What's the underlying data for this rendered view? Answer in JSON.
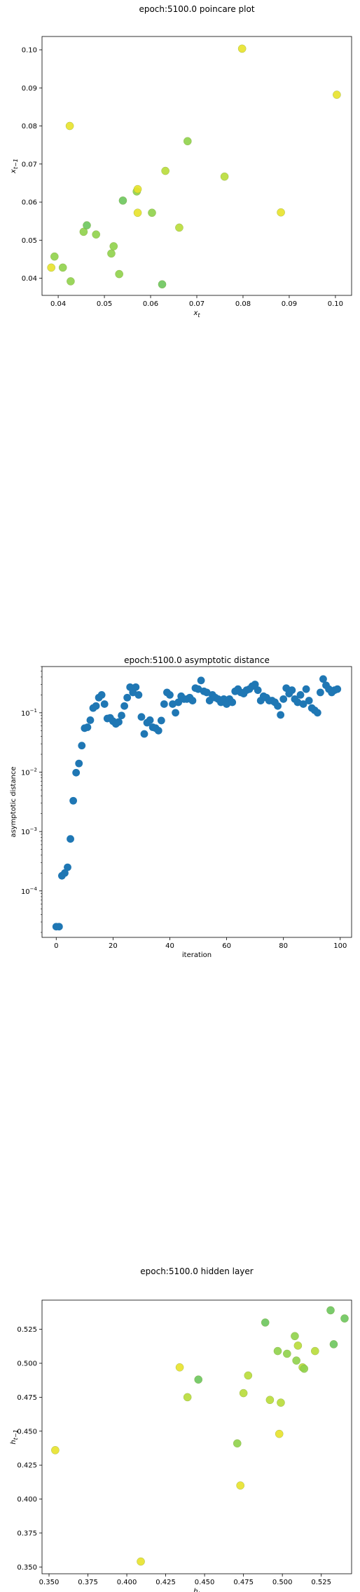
{
  "chart_data": [
    {
      "type": "scatter",
      "title": "epoch:5100.0 poincare plot",
      "xlabel": "x_t",
      "ylabel": "x_{t-1}",
      "xlim": [
        0.0365,
        0.1035
      ],
      "ylim": [
        0.0355,
        0.1035
      ],
      "xticks": [
        0.04,
        0.05,
        0.06,
        0.07,
        0.08,
        0.09,
        0.1
      ],
      "yticks": [
        0.04,
        0.05,
        0.06,
        0.07,
        0.08,
        0.09,
        0.1
      ],
      "tick_format": 2,
      "points": [
        {
          "x": 0.0385,
          "y": 0.0428,
          "color": "#e8e22a"
        },
        {
          "x": 0.0392,
          "y": 0.0457,
          "color": "#8fd14a"
        },
        {
          "x": 0.041,
          "y": 0.0428,
          "color": "#8fd14a"
        },
        {
          "x": 0.0425,
          "y": 0.08,
          "color": "#e8e22a"
        },
        {
          "x": 0.0427,
          "y": 0.0392,
          "color": "#8fd14a"
        },
        {
          "x": 0.0455,
          "y": 0.0522,
          "color": "#8fd14a"
        },
        {
          "x": 0.0462,
          "y": 0.0539,
          "color": "#6cc55c"
        },
        {
          "x": 0.0482,
          "y": 0.0515,
          "color": "#8fd14a"
        },
        {
          "x": 0.0515,
          "y": 0.0465,
          "color": "#8fd14a"
        },
        {
          "x": 0.052,
          "y": 0.0484,
          "color": "#8fd14a"
        },
        {
          "x": 0.0532,
          "y": 0.0411,
          "color": "#8fd14a"
        },
        {
          "x": 0.054,
          "y": 0.0604,
          "color": "#6cc55c"
        },
        {
          "x": 0.057,
          "y": 0.0628,
          "color": "#8fd14a"
        },
        {
          "x": 0.0572,
          "y": 0.0634,
          "color": "#e8e22a"
        },
        {
          "x": 0.0572,
          "y": 0.0572,
          "color": "#e8e22a"
        },
        {
          "x": 0.0603,
          "y": 0.0572,
          "color": "#8fd14a"
        },
        {
          "x": 0.0625,
          "y": 0.0384,
          "color": "#6cc55c"
        },
        {
          "x": 0.0632,
          "y": 0.0682,
          "color": "#b8dc38"
        },
        {
          "x": 0.0662,
          "y": 0.0533,
          "color": "#b8dc38"
        },
        {
          "x": 0.068,
          "y": 0.076,
          "color": "#8fd14a"
        },
        {
          "x": 0.076,
          "y": 0.0667,
          "color": "#b8dc38"
        },
        {
          "x": 0.0798,
          "y": 0.1003,
          "color": "#e8e22a"
        },
        {
          "x": 0.0882,
          "y": 0.0573,
          "color": "#e8e22a"
        },
        {
          "x": 0.1003,
          "y": 0.0882,
          "color": "#e8e22a"
        }
      ]
    },
    {
      "type": "scatter",
      "title": "epoch:5100.0 asymptotic distance",
      "xlabel": "iteration",
      "ylabel": "asymptotic distance",
      "yscale": "log",
      "xlim": [
        -5,
        104
      ],
      "ylim": [
        1.65e-05,
        0.6
      ],
      "xticks": [
        0,
        20,
        40,
        60,
        80,
        100
      ],
      "yticks": [
        -4,
        -3,
        -2,
        -1
      ],
      "color": "#1f77b4",
      "x": [
        0,
        1,
        2,
        3,
        4,
        5,
        6,
        7,
        8,
        9,
        10,
        11,
        12,
        13,
        14,
        15,
        16,
        17,
        18,
        19,
        20,
        21,
        22,
        23,
        24,
        25,
        26,
        27,
        28,
        29,
        30,
        31,
        32,
        33,
        34,
        35,
        36,
        37,
        38,
        39,
        40,
        41,
        42,
        43,
        44,
        45,
        46,
        47,
        48,
        49,
        50,
        51,
        52,
        53,
        54,
        55,
        56,
        57,
        58,
        59,
        60,
        61,
        62,
        63,
        64,
        65,
        66,
        67,
        68,
        69,
        70,
        71,
        72,
        73,
        74,
        75,
        76,
        77,
        78,
        79,
        80,
        81,
        82,
        83,
        84,
        85,
        86,
        87,
        88,
        89,
        90,
        91,
        92,
        93,
        94,
        95,
        96,
        97,
        98,
        99
      ],
      "y": [
        2.5e-05,
        2.5e-05,
        0.00018,
        0.0002,
        0.00025,
        0.00075,
        0.0033,
        0.0098,
        0.014,
        0.028,
        0.055,
        0.057,
        0.075,
        0.12,
        0.13,
        0.18,
        0.2,
        0.14,
        0.08,
        0.082,
        0.072,
        0.065,
        0.07,
        0.09,
        0.13,
        0.18,
        0.27,
        0.22,
        0.27,
        0.2,
        0.085,
        0.044,
        0.068,
        0.075,
        0.057,
        0.055,
        0.05,
        0.074,
        0.14,
        0.22,
        0.2,
        0.14,
        0.1,
        0.15,
        0.19,
        0.17,
        0.17,
        0.18,
        0.16,
        0.26,
        0.25,
        0.35,
        0.23,
        0.22,
        0.16,
        0.2,
        0.18,
        0.17,
        0.15,
        0.17,
        0.14,
        0.17,
        0.15,
        0.23,
        0.25,
        0.22,
        0.21,
        0.24,
        0.25,
        0.28,
        0.3,
        0.24,
        0.16,
        0.19,
        0.18,
        0.16,
        0.16,
        0.15,
        0.13,
        0.092,
        0.17,
        0.26,
        0.21,
        0.24,
        0.17,
        0.15,
        0.2,
        0.14,
        0.25,
        0.16,
        0.12,
        0.11,
        0.1,
        0.22,
        0.37,
        0.29,
        0.25,
        0.22,
        0.24,
        0.25
      ]
    },
    {
      "type": "scatter",
      "title": "epoch:5100.0 hidden layer",
      "xlabel": "h_t",
      "ylabel": "h_{t-1}",
      "xlim": [
        0.3455,
        0.5445
      ],
      "ylim": [
        0.345,
        0.5465
      ],
      "xticks": [
        0.35,
        0.375,
        0.4,
        0.425,
        0.45,
        0.475,
        0.5,
        0.525
      ],
      "yticks": [
        0.35,
        0.375,
        0.4,
        0.425,
        0.45,
        0.475,
        0.5,
        0.525
      ],
      "tick_format": 3,
      "points": [
        {
          "x": 0.354,
          "y": 0.436,
          "color": "#e8e22a"
        },
        {
          "x": 0.409,
          "y": 0.354,
          "color": "#e8e22a"
        },
        {
          "x": 0.434,
          "y": 0.497,
          "color": "#e8e22a"
        },
        {
          "x": 0.439,
          "y": 0.475,
          "color": "#b8dc38"
        },
        {
          "x": 0.446,
          "y": 0.488,
          "color": "#6cc55c"
        },
        {
          "x": 0.471,
          "y": 0.441,
          "color": "#8fd14a"
        },
        {
          "x": 0.473,
          "y": 0.41,
          "color": "#e8e22a"
        },
        {
          "x": 0.475,
          "y": 0.478,
          "color": "#b8dc38"
        },
        {
          "x": 0.478,
          "y": 0.491,
          "color": "#b8dc38"
        },
        {
          "x": 0.489,
          "y": 0.53,
          "color": "#6cc55c"
        },
        {
          "x": 0.492,
          "y": 0.473,
          "color": "#b8dc38"
        },
        {
          "x": 0.497,
          "y": 0.509,
          "color": "#8fd14a"
        },
        {
          "x": 0.498,
          "y": 0.448,
          "color": "#e8e22a"
        },
        {
          "x": 0.499,
          "y": 0.471,
          "color": "#b8dc38"
        },
        {
          "x": 0.503,
          "y": 0.507,
          "color": "#8fd14a"
        },
        {
          "x": 0.508,
          "y": 0.52,
          "color": "#8fd14a"
        },
        {
          "x": 0.509,
          "y": 0.502,
          "color": "#8fd14a"
        },
        {
          "x": 0.51,
          "y": 0.513,
          "color": "#b8dc38"
        },
        {
          "x": 0.513,
          "y": 0.497,
          "color": "#b8dc38"
        },
        {
          "x": 0.514,
          "y": 0.496,
          "color": "#8fd14a"
        },
        {
          "x": 0.521,
          "y": 0.509,
          "color": "#b8dc38"
        },
        {
          "x": 0.531,
          "y": 0.539,
          "color": "#6cc55c"
        },
        {
          "x": 0.533,
          "y": 0.514,
          "color": "#6cc55c"
        },
        {
          "x": 0.54,
          "y": 0.533,
          "color": "#6cc55c"
        }
      ]
    }
  ]
}
